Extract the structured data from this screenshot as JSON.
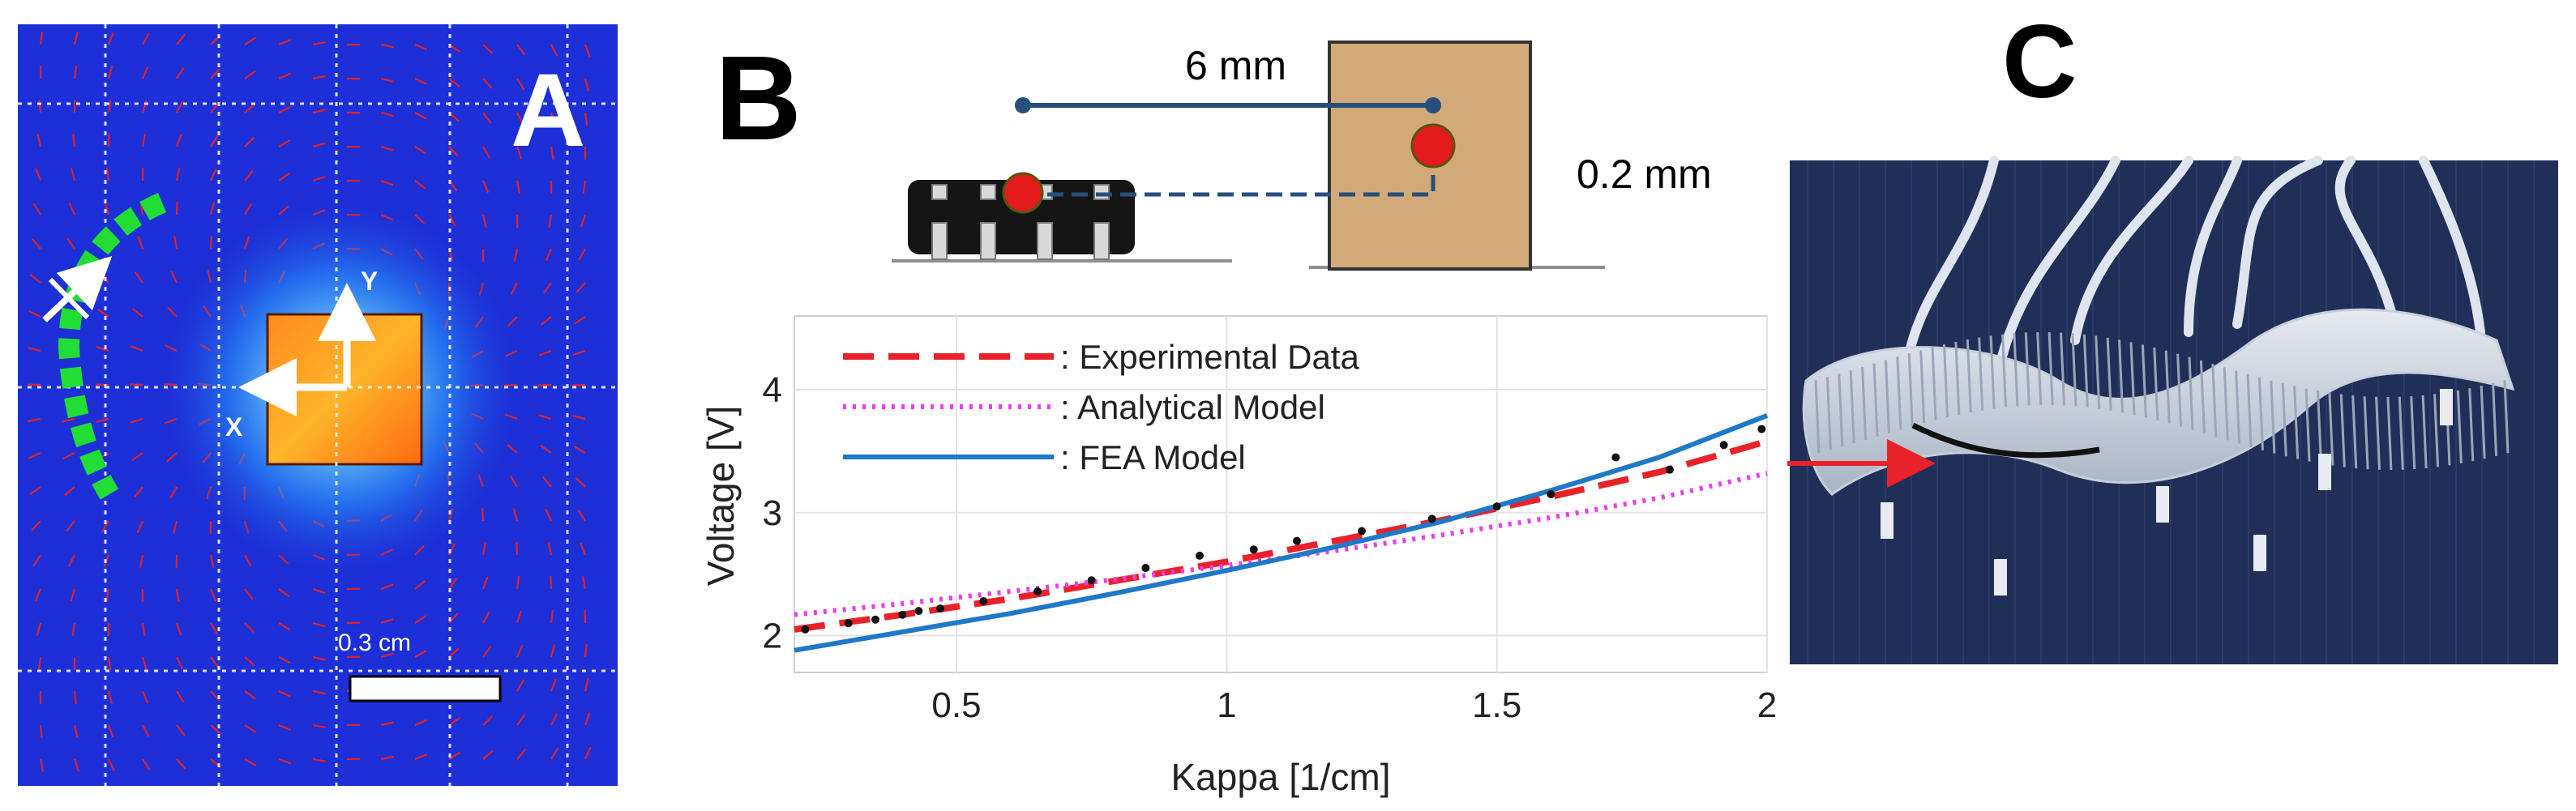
{
  "panels": {
    "a": {
      "letter": "A",
      "scale_label": "0.3 cm",
      "axis_x": "X",
      "axis_y": "Y"
    },
    "b": {
      "letter": "B",
      "schematic": {
        "distance_label": "6 mm",
        "gap_label": "0.2 mm"
      }
    },
    "c": {
      "letter": "C"
    }
  },
  "colors": {
    "field_background": "#1d2fd6",
    "field_arrows": "#e0222a",
    "sensor_trace": "#22dd33",
    "experimental": "#e8222a",
    "analytical": "#ee3cf0",
    "fea": "#1f78c8",
    "magnet_block": "#d2aa78",
    "photo_background": "#1f2f58"
  },
  "chart_data": {
    "type": "line",
    "xlabel": "Kappa [1/cm]",
    "ylabel": "Voltage [V]",
    "xlim": [
      0.2,
      2.0
    ],
    "ylim": [
      1.7,
      4.6
    ],
    "xticks": [
      0.5,
      1,
      1.5,
      2
    ],
    "yticks": [
      2,
      3,
      4
    ],
    "grid": true,
    "legend_position": "top-left",
    "series": [
      {
        "name": ": Experimental Data",
        "style": "dashed",
        "x": [
          0.2,
          0.4,
          0.6,
          0.8,
          1.0,
          1.2,
          1.4,
          1.6,
          1.8,
          2.0
        ],
        "y": [
          2.05,
          2.17,
          2.3,
          2.45,
          2.6,
          2.77,
          2.94,
          3.13,
          3.33,
          3.58
        ]
      },
      {
        "name": ": Analytical Model",
        "style": "dotted",
        "x": [
          0.2,
          0.4,
          0.6,
          0.8,
          1.0,
          1.2,
          1.4,
          1.6,
          1.8,
          2.0
        ],
        "y": [
          2.17,
          2.26,
          2.36,
          2.46,
          2.57,
          2.69,
          2.82,
          2.96,
          3.12,
          3.32
        ]
      },
      {
        "name": ": FEA Model",
        "style": "solid",
        "x": [
          0.2,
          0.4,
          0.6,
          0.8,
          1.0,
          1.2,
          1.4,
          1.6,
          1.8,
          2.0
        ],
        "y": [
          1.88,
          2.03,
          2.18,
          2.35,
          2.53,
          2.72,
          2.93,
          3.18,
          3.45,
          3.79
        ]
      },
      {
        "name": "",
        "style": "points",
        "x": [
          0.22,
          0.3,
          0.35,
          0.4,
          0.43,
          0.47,
          0.55,
          0.65,
          0.75,
          0.85,
          0.95,
          1.05,
          1.13,
          1.25,
          1.38,
          1.5,
          1.6,
          1.72,
          1.82,
          1.92,
          1.99
        ],
        "y": [
          2.05,
          2.1,
          2.13,
          2.17,
          2.2,
          2.22,
          2.28,
          2.36,
          2.45,
          2.55,
          2.65,
          2.7,
          2.77,
          2.85,
          2.95,
          3.05,
          3.15,
          3.45,
          3.35,
          3.55,
          3.68
        ]
      }
    ]
  }
}
